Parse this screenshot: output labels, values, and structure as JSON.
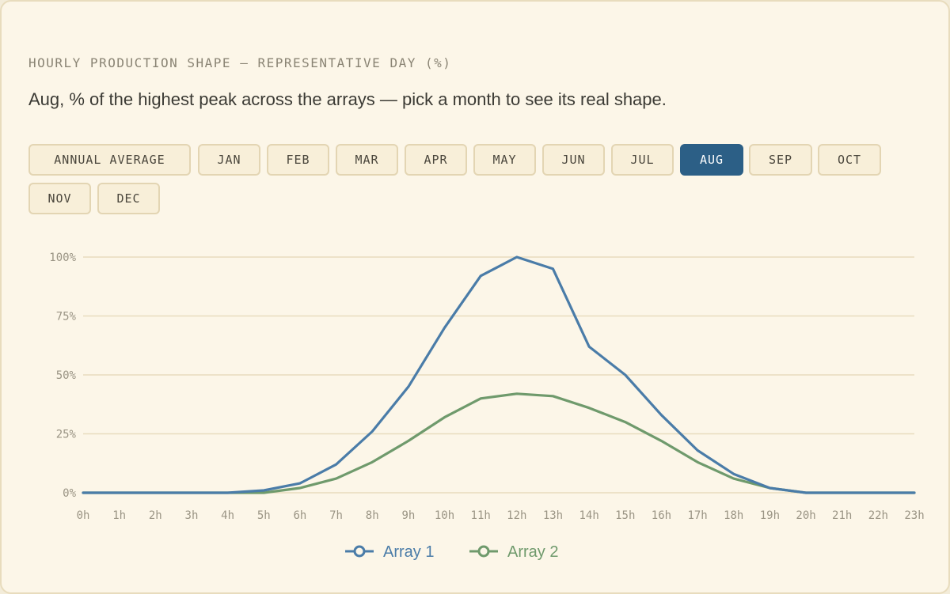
{
  "header": {
    "title": "HOURLY PRODUCTION SHAPE — REPRESENTATIVE DAY (%)",
    "subtitle": "Aug, % of the highest peak across the arrays — pick a month to see its real shape."
  },
  "month_buttons": [
    {
      "label": "ANNUAL AVERAGE",
      "active": false
    },
    {
      "label": "JAN",
      "active": false
    },
    {
      "label": "FEB",
      "active": false
    },
    {
      "label": "MAR",
      "active": false
    },
    {
      "label": "APR",
      "active": false
    },
    {
      "label": "MAY",
      "active": false
    },
    {
      "label": "JUN",
      "active": false
    },
    {
      "label": "JUL",
      "active": false
    },
    {
      "label": "AUG",
      "active": true
    },
    {
      "label": "SEP",
      "active": false
    },
    {
      "label": "OCT",
      "active": false
    },
    {
      "label": "NOV",
      "active": false
    },
    {
      "label": "DEC",
      "active": false
    }
  ],
  "colors": {
    "accent": "#2c5f86",
    "array1": "#4a7ca8",
    "array2": "#6f9a6c",
    "grid": "#e8dcbd"
  },
  "chart_data": {
    "type": "line",
    "x": [
      "0h",
      "1h",
      "2h",
      "3h",
      "4h",
      "5h",
      "6h",
      "7h",
      "8h",
      "9h",
      "10h",
      "11h",
      "12h",
      "13h",
      "14h",
      "15h",
      "16h",
      "17h",
      "18h",
      "19h",
      "20h",
      "21h",
      "22h",
      "23h"
    ],
    "series": [
      {
        "name": "Array 1",
        "values": [
          0,
          0,
          0,
          0,
          0,
          1,
          4,
          12,
          26,
          45,
          70,
          92,
          100,
          95,
          62,
          50,
          33,
          18,
          8,
          2,
          0,
          0,
          0,
          0
        ]
      },
      {
        "name": "Array 2",
        "values": [
          0,
          0,
          0,
          0,
          0,
          0,
          2,
          6,
          13,
          22,
          32,
          40,
          42,
          41,
          36,
          30,
          22,
          13,
          6,
          2,
          0,
          0,
          0,
          0
        ]
      }
    ],
    "y_ticks": [
      "0%",
      "25%",
      "50%",
      "75%",
      "100%"
    ],
    "ylim": [
      0,
      100
    ],
    "grid": true,
    "legend": "bottom-center"
  }
}
